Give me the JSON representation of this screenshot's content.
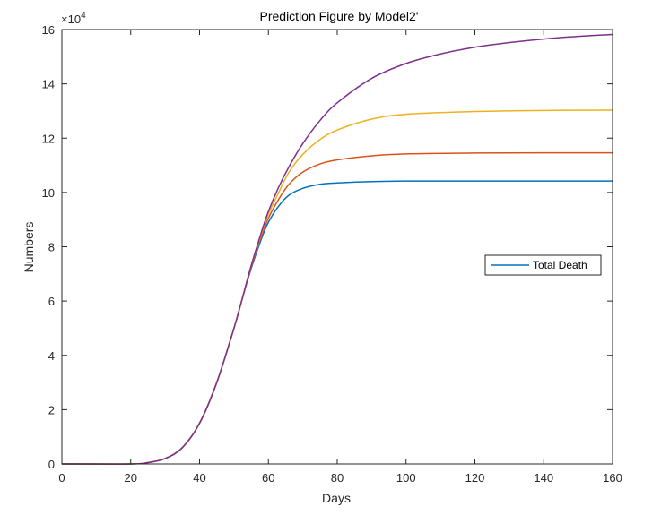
{
  "chart_data": {
    "type": "line",
    "title": "Prediction Figure by Model2'",
    "xlabel": "Days",
    "ylabel": "Numbers",
    "y_exponent_label": "×10",
    "y_exponent_power": "4",
    "xlim": [
      0,
      160
    ],
    "ylim": [
      0,
      16
    ],
    "grid": false,
    "x_ticks": [
      0,
      20,
      40,
      60,
      80,
      100,
      120,
      140,
      160
    ],
    "y_ticks": [
      0,
      2,
      4,
      6,
      8,
      10,
      12,
      14,
      16
    ],
    "x_tick_labels": [
      "0",
      "20",
      "40",
      "60",
      "80",
      "100",
      "120",
      "140",
      "160"
    ],
    "y_tick_labels": [
      "0",
      "2",
      "4",
      "6",
      "8",
      "10",
      "12",
      "14",
      "16"
    ],
    "legend": {
      "entries": [
        "Total Death"
      ],
      "placement": "right"
    },
    "series": [
      {
        "name": "Total Death",
        "color": "#0072BD",
        "x": [
          0,
          20,
          25,
          30,
          35,
          40,
          45,
          50,
          52,
          55,
          58,
          60,
          63,
          66,
          70,
          75,
          80,
          90,
          100,
          120,
          140,
          160
        ],
        "y": [
          0,
          0,
          0.05,
          0.2,
          0.6,
          1.5,
          3.0,
          5.0,
          5.9,
          7.2,
          8.3,
          8.9,
          9.5,
          9.9,
          10.15,
          10.3,
          10.35,
          10.4,
          10.42,
          10.42,
          10.42,
          10.42
        ]
      },
      {
        "color": "#D95319",
        "x": [
          0,
          20,
          25,
          30,
          35,
          40,
          45,
          50,
          52,
          55,
          58,
          60,
          63,
          66,
          70,
          75,
          80,
          90,
          100,
          120,
          140,
          160
        ],
        "y": [
          0,
          0,
          0.05,
          0.2,
          0.6,
          1.5,
          3.0,
          5.0,
          5.9,
          7.25,
          8.4,
          9.05,
          9.75,
          10.3,
          10.75,
          11.05,
          11.2,
          11.35,
          11.42,
          11.45,
          11.46,
          11.46
        ]
      },
      {
        "color": "#EDB120",
        "x": [
          0,
          20,
          25,
          30,
          35,
          40,
          45,
          50,
          52,
          55,
          58,
          60,
          63,
          66,
          70,
          75,
          80,
          90,
          100,
          120,
          140,
          160
        ],
        "y": [
          0,
          0,
          0.05,
          0.2,
          0.6,
          1.5,
          3.0,
          5.0,
          5.9,
          7.3,
          8.5,
          9.2,
          10.0,
          10.75,
          11.4,
          11.95,
          12.3,
          12.7,
          12.88,
          12.98,
          13.02,
          13.03
        ]
      },
      {
        "color": "#7E2F8E",
        "x": [
          0,
          20,
          25,
          30,
          35,
          40,
          45,
          50,
          52,
          55,
          58,
          60,
          63,
          66,
          70,
          75,
          80,
          90,
          100,
          110,
          120,
          130,
          140,
          150,
          160
        ],
        "y": [
          0,
          0,
          0.05,
          0.2,
          0.6,
          1.5,
          3.0,
          5.0,
          5.9,
          7.3,
          8.55,
          9.3,
          10.2,
          10.95,
          11.8,
          12.65,
          13.3,
          14.2,
          14.75,
          15.1,
          15.35,
          15.52,
          15.65,
          15.75,
          15.82
        ]
      }
    ]
  }
}
